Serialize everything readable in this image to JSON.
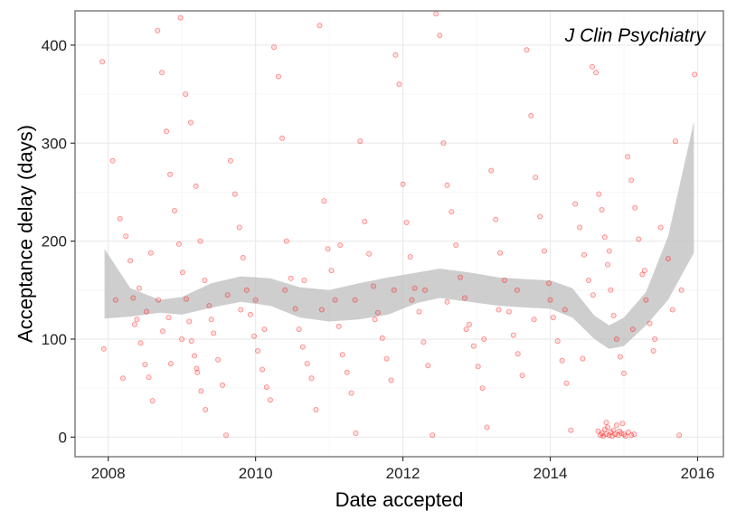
{
  "chart_data": {
    "type": "scatter",
    "title": "",
    "annotation": "J Clin Psychiatry",
    "xlabel": "Date accepted",
    "ylabel": "Acceptance delay (days)",
    "xlim": [
      2007.55,
      2016.35
    ],
    "ylim": [
      -20,
      435
    ],
    "x_ticks": [
      2008,
      2010,
      2012,
      2014,
      2016
    ],
    "x_tick_labels": [
      "2008",
      "2010",
      "2012",
      "2014",
      "2016"
    ],
    "y_ticks": [
      0,
      100,
      200,
      300,
      400
    ],
    "y_tick_labels": [
      "0",
      "100",
      "200",
      "300",
      "400"
    ],
    "grid": true,
    "legend": "none",
    "colors": {
      "points": "#ff0000",
      "ribbon": "#bdbdbd",
      "panel_border": "#7f7f7f",
      "gridline": "#ebebeb"
    },
    "smooth_band": {
      "x": [
        2007.95,
        2008.3,
        2008.7,
        2009.0,
        2009.4,
        2009.8,
        2010.2,
        2010.6,
        2011.0,
        2011.4,
        2011.8,
        2012.2,
        2012.5,
        2012.9,
        2013.3,
        2013.7,
        2014.0,
        2014.3,
        2014.6,
        2014.8,
        2015.0,
        2015.3,
        2015.6,
        2015.95
      ],
      "upper": [
        192,
        152,
        140,
        143,
        157,
        164,
        162,
        153,
        150,
        157,
        163,
        168,
        172,
        168,
        163,
        161,
        160,
        152,
        124,
        114,
        122,
        148,
        205,
        322
      ],
      "lower": [
        121,
        123,
        127,
        125,
        132,
        138,
        134,
        122,
        118,
        120,
        125,
        137,
        142,
        138,
        134,
        132,
        131,
        122,
        100,
        90,
        93,
        114,
        140,
        188
      ]
    },
    "points": [
      [
        2007.92,
        383
      ],
      [
        2007.94,
        90
      ],
      [
        2008.06,
        282
      ],
      [
        2008.16,
        223
      ],
      [
        2008.24,
        205
      ],
      [
        2008.3,
        180
      ],
      [
        2008.34,
        142
      ],
      [
        2008.39,
        120
      ],
      [
        2008.44,
        96
      ],
      [
        2008.5,
        74
      ],
      [
        2008.55,
        61
      ],
      [
        2008.6,
        37
      ],
      [
        2008.67,
        415
      ],
      [
        2008.73,
        372
      ],
      [
        2008.79,
        312
      ],
      [
        2008.84,
        268
      ],
      [
        2008.9,
        231
      ],
      [
        2008.96,
        197
      ],
      [
        2009.01,
        168
      ],
      [
        2009.06,
        141
      ],
      [
        2009.1,
        118
      ],
      [
        2009.13,
        98
      ],
      [
        2009.17,
        83
      ],
      [
        2009.21,
        66
      ],
      [
        2009.26,
        47
      ],
      [
        2009.32,
        28
      ],
      [
        2008.2,
        60
      ],
      [
        2008.42,
        152
      ],
      [
        2008.58,
        188
      ],
      [
        2008.74,
        108
      ],
      [
        2008.85,
        75
      ],
      [
        2008.98,
        428
      ],
      [
        2009.05,
        350
      ],
      [
        2009.12,
        321
      ],
      [
        2009.19,
        256
      ],
      [
        2009.25,
        200
      ],
      [
        2009.31,
        160
      ],
      [
        2009.37,
        134
      ],
      [
        2009.43,
        106
      ],
      [
        2009.49,
        79
      ],
      [
        2009.55,
        53
      ],
      [
        2009.6,
        2
      ],
      [
        2009.66,
        282
      ],
      [
        2009.72,
        248
      ],
      [
        2009.78,
        214
      ],
      [
        2009.83,
        183
      ],
      [
        2009.88,
        150
      ],
      [
        2009.93,
        125
      ],
      [
        2009.98,
        103
      ],
      [
        2010.03,
        88
      ],
      [
        2010.09,
        69
      ],
      [
        2010.15,
        51
      ],
      [
        2010.2,
        38
      ],
      [
        2010.25,
        398
      ],
      [
        2010.31,
        368
      ],
      [
        2010.36,
        305
      ],
      [
        2010.42,
        200
      ],
      [
        2010.48,
        162
      ],
      [
        2010.54,
        131
      ],
      [
        2010.59,
        110
      ],
      [
        2010.64,
        92
      ],
      [
        2010.7,
        75
      ],
      [
        2010.76,
        60
      ],
      [
        2010.82,
        28
      ],
      [
        2010.87,
        420
      ],
      [
        2010.93,
        241
      ],
      [
        2010.98,
        192
      ],
      [
        2011.03,
        170
      ],
      [
        2011.08,
        140
      ],
      [
        2011.13,
        113
      ],
      [
        2011.18,
        84
      ],
      [
        2011.24,
        66
      ],
      [
        2011.3,
        45
      ],
      [
        2011.36,
        4
      ],
      [
        2011.42,
        302
      ],
      [
        2011.48,
        220
      ],
      [
        2011.54,
        187
      ],
      [
        2011.6,
        154
      ],
      [
        2011.66,
        127
      ],
      [
        2011.72,
        101
      ],
      [
        2011.78,
        80
      ],
      [
        2011.84,
        58
      ],
      [
        2011.9,
        390
      ],
      [
        2011.95,
        360
      ],
      [
        2012.0,
        258
      ],
      [
        2012.05,
        219
      ],
      [
        2012.1,
        184
      ],
      [
        2012.16,
        152
      ],
      [
        2012.22,
        128
      ],
      [
        2012.28,
        97
      ],
      [
        2012.34,
        73
      ],
      [
        2012.4,
        2
      ],
      [
        2012.45,
        432
      ],
      [
        2012.5,
        410
      ],
      [
        2012.55,
        300
      ],
      [
        2012.6,
        257
      ],
      [
        2012.66,
        230
      ],
      [
        2012.72,
        196
      ],
      [
        2012.78,
        163
      ],
      [
        2012.84,
        142
      ],
      [
        2012.9,
        115
      ],
      [
        2012.96,
        93
      ],
      [
        2013.02,
        72
      ],
      [
        2013.08,
        50
      ],
      [
        2013.14,
        10
      ],
      [
        2013.2,
        272
      ],
      [
        2013.26,
        222
      ],
      [
        2013.32,
        188
      ],
      [
        2013.38,
        160
      ],
      [
        2013.44,
        128
      ],
      [
        2013.5,
        104
      ],
      [
        2013.56,
        85
      ],
      [
        2013.62,
        63
      ],
      [
        2013.68,
        395
      ],
      [
        2013.74,
        328
      ],
      [
        2013.8,
        265
      ],
      [
        2013.86,
        225
      ],
      [
        2013.92,
        190
      ],
      [
        2013.98,
        157
      ],
      [
        2014.04,
        122
      ],
      [
        2014.1,
        98
      ],
      [
        2014.16,
        78
      ],
      [
        2014.22,
        55
      ],
      [
        2014.28,
        7
      ],
      [
        2014.34,
        238
      ],
      [
        2014.4,
        214
      ],
      [
        2014.46,
        186
      ],
      [
        2014.52,
        160
      ],
      [
        2014.57,
        378
      ],
      [
        2014.62,
        372
      ],
      [
        2014.66,
        248
      ],
      [
        2014.7,
        232
      ],
      [
        2014.74,
        204
      ],
      [
        2014.78,
        176
      ],
      [
        2014.82,
        150
      ],
      [
        2014.86,
        124
      ],
      [
        2014.9,
        100
      ],
      [
        2014.95,
        82
      ],
      [
        2015.0,
        65
      ],
      [
        2015.05,
        286
      ],
      [
        2015.1,
        262
      ],
      [
        2015.15,
        234
      ],
      [
        2015.2,
        202
      ],
      [
        2015.25,
        166
      ],
      [
        2015.3,
        140
      ],
      [
        2015.35,
        116
      ],
      [
        2015.4,
        88
      ],
      [
        2015.5,
        214
      ],
      [
        2015.6,
        182
      ],
      [
        2015.7,
        302
      ],
      [
        2015.78,
        150
      ],
      [
        2015.96,
        370
      ],
      [
        2014.65,
        6
      ],
      [
        2014.68,
        2
      ],
      [
        2014.7,
        4
      ],
      [
        2014.72,
        1
      ],
      [
        2014.74,
        8
      ],
      [
        2014.76,
        3
      ],
      [
        2014.78,
        10
      ],
      [
        2014.8,
        2
      ],
      [
        2014.82,
        5
      ],
      [
        2014.84,
        1
      ],
      [
        2014.86,
        7
      ],
      [
        2014.88,
        3
      ],
      [
        2014.9,
        12
      ],
      [
        2014.92,
        2
      ],
      [
        2014.94,
        6
      ],
      [
        2014.96,
        4
      ],
      [
        2014.98,
        14
      ],
      [
        2015.0,
        3
      ],
      [
        2015.02,
        1
      ],
      [
        2015.06,
        5
      ],
      [
        2015.1,
        2
      ],
      [
        2015.14,
        3
      ],
      [
        2015.75,
        2
      ],
      [
        2014.76,
        15
      ],
      [
        2008.1,
        140
      ],
      [
        2008.36,
        115
      ],
      [
        2008.52,
        128
      ],
      [
        2008.68,
        140
      ],
      [
        2008.82,
        122
      ],
      [
        2009.0,
        100
      ],
      [
        2009.2,
        70
      ],
      [
        2009.4,
        120
      ],
      [
        2009.62,
        145
      ],
      [
        2009.8,
        130
      ],
      [
        2010.0,
        140
      ],
      [
        2010.12,
        110
      ],
      [
        2010.4,
        150
      ],
      [
        2010.66,
        160
      ],
      [
        2010.9,
        130
      ],
      [
        2011.15,
        196
      ],
      [
        2011.35,
        140
      ],
      [
        2011.62,
        120
      ],
      [
        2011.88,
        150
      ],
      [
        2012.12,
        140
      ],
      [
        2012.3,
        150
      ],
      [
        2012.6,
        138
      ],
      [
        2012.86,
        110
      ],
      [
        2013.1,
        100
      ],
      [
        2013.3,
        130
      ],
      [
        2013.55,
        150
      ],
      [
        2013.78,
        120
      ],
      [
        2014.0,
        140
      ],
      [
        2014.2,
        130
      ],
      [
        2014.44,
        80
      ],
      [
        2014.58,
        145
      ],
      [
        2014.8,
        190
      ],
      [
        2015.12,
        110
      ],
      [
        2015.28,
        170
      ],
      [
        2015.42,
        100
      ],
      [
        2015.66,
        130
      ]
    ]
  }
}
